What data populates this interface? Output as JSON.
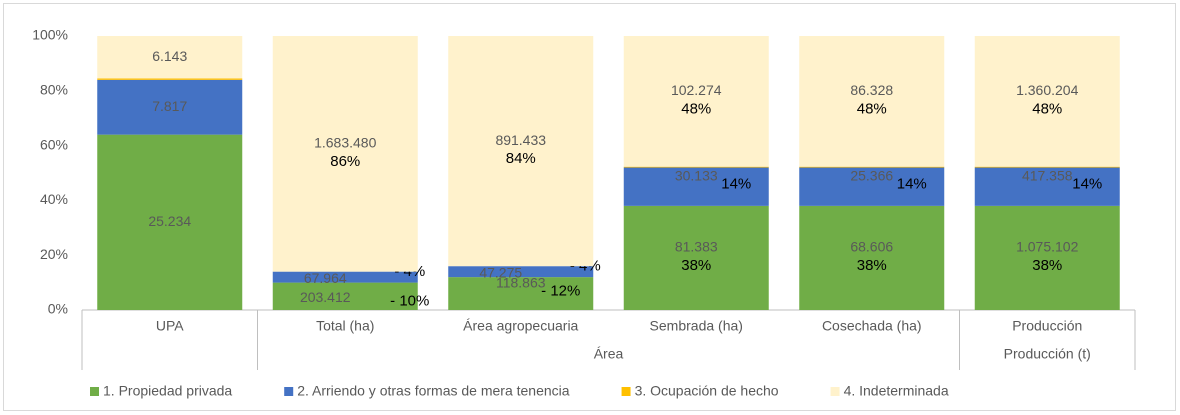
{
  "chart_data": {
    "type": "bar",
    "stacked": true,
    "categories": [
      "UPA",
      "Total (ha)",
      "Área agropecuaria",
      "Sembrada (ha)",
      "Cosechada (ha)",
      "Producción"
    ],
    "group_labels": [
      null,
      "Área",
      "Área",
      "Área",
      "Área",
      "Producción (t)"
    ],
    "ylim": [
      0,
      100
    ],
    "yticks": [
      {
        "value": 0,
        "label": "0%"
      },
      {
        "value": 20,
        "label": "20%"
      },
      {
        "value": 40,
        "label": "40%"
      },
      {
        "value": 60,
        "label": "60%"
      },
      {
        "value": 80,
        "label": "80%"
      },
      {
        "value": 100,
        "label": "100%"
      }
    ],
    "grid": false,
    "legend": "bottom",
    "series": [
      {
        "name": "1. Propiedad privada",
        "color": "#70ad47",
        "values": [
          64,
          10,
          12,
          38,
          38,
          38
        ],
        "count_labels": [
          "25.234",
          "203.412",
          "118.863",
          "81.383",
          "68.606",
          "1.075.102"
        ],
        "value_labels": [
          null,
          "- 10%",
          "- 12%",
          "38%",
          "38%",
          "38%"
        ]
      },
      {
        "name": "2. Arriendo y otras formas de mera tenencia",
        "color": "#4472c4",
        "values": [
          20,
          4,
          4,
          14,
          14,
          14
        ],
        "count_labels": [
          "7.817",
          "67.964",
          "47.275",
          "30.133",
          "25.366",
          "417.358"
        ],
        "value_labels": [
          null,
          "- 4%",
          "- 4%",
          "14%",
          "14%",
          "14%"
        ]
      },
      {
        "name": "3. Ocupación de hecho",
        "color": "#ffc000",
        "values": [
          0.5,
          0,
          0,
          0.3,
          0.3,
          0.3
        ],
        "count_labels": [
          null,
          null,
          null,
          null,
          null,
          null
        ],
        "value_labels": [
          null,
          null,
          null,
          null,
          null,
          null
        ]
      },
      {
        "name": "4. Indeterminada",
        "color": "#fff2cc",
        "values": [
          15.5,
          86,
          84,
          47.7,
          47.7,
          47.7
        ],
        "count_labels": [
          "6.143",
          "1.683.480",
          "891.433",
          "102.274",
          "86.328",
          "1.360.204"
        ],
        "value_labels": [
          null,
          "86%",
          "84%",
          "48%",
          "48%",
          "48%"
        ]
      }
    ]
  }
}
